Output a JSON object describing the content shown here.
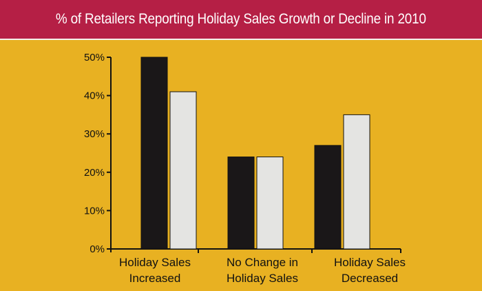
{
  "header": {
    "title": "% of Retailers Reporting Holiday Sales Growth or Decline in 2010"
  },
  "colors": {
    "header_bg": "#b51f45",
    "plot_bg": "#e8b122",
    "series_dark": "#1a1718",
    "series_light": "#e4e4e2"
  },
  "chart_data": {
    "type": "bar",
    "title": "% of Retailers Reporting Holiday Sales Growth or Decline in 2010",
    "categories": [
      [
        "Holiday Sales",
        "Increased"
      ],
      [
        "No Change in",
        "Holiday Sales"
      ],
      [
        "Holiday Sales",
        "Decreased"
      ]
    ],
    "series": [
      {
        "values": [
          50,
          24,
          27
        ],
        "color": "#1a1718"
      },
      {
        "values": [
          41,
          24,
          35
        ],
        "color": "#e4e4e2"
      }
    ],
    "yticks": [
      "0%",
      "10%",
      "20%",
      "30%",
      "40%",
      "50%"
    ],
    "ylim": [
      0,
      50
    ],
    "grid": false,
    "legend": "none"
  }
}
